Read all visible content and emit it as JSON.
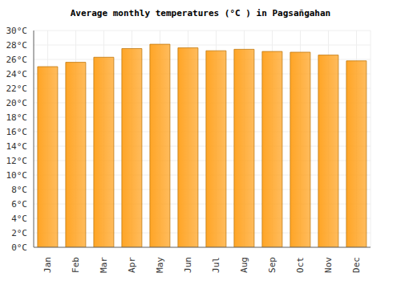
{
  "chart_data": {
    "type": "bar",
    "title": "Average monthly temperatures (°C ) in Pagsañgahan",
    "categories": [
      "Jan",
      "Feb",
      "Mar",
      "Apr",
      "May",
      "Jun",
      "Jul",
      "Aug",
      "Sep",
      "Oct",
      "Nov",
      "Dec"
    ],
    "values": [
      25.0,
      25.6,
      26.3,
      27.5,
      28.1,
      27.6,
      27.2,
      27.4,
      27.1,
      27.0,
      26.6,
      25.8
    ],
    "color": "#ffa526",
    "ylim": [
      0,
      30
    ],
    "yticks": [
      {
        "value": 0,
        "label": "0°C"
      },
      {
        "value": 2,
        "label": "2°C"
      },
      {
        "value": 4,
        "label": "4°C"
      },
      {
        "value": 6,
        "label": "6°C"
      },
      {
        "value": 8,
        "label": "8°C"
      },
      {
        "value": 10,
        "label": "10°C"
      },
      {
        "value": 12,
        "label": "12°C"
      },
      {
        "value": 14,
        "label": "14°C"
      },
      {
        "value": 16,
        "label": "16°C"
      },
      {
        "value": 18,
        "label": "18°C"
      },
      {
        "value": 20,
        "label": "20°C"
      },
      {
        "value": 22,
        "label": "22°C"
      },
      {
        "value": 24,
        "label": "24°C"
      },
      {
        "value": 26,
        "label": "26°C"
      },
      {
        "value": 28,
        "label": "28°C"
      },
      {
        "value": 30,
        "label": "30°C"
      }
    ],
    "grid": true
  }
}
